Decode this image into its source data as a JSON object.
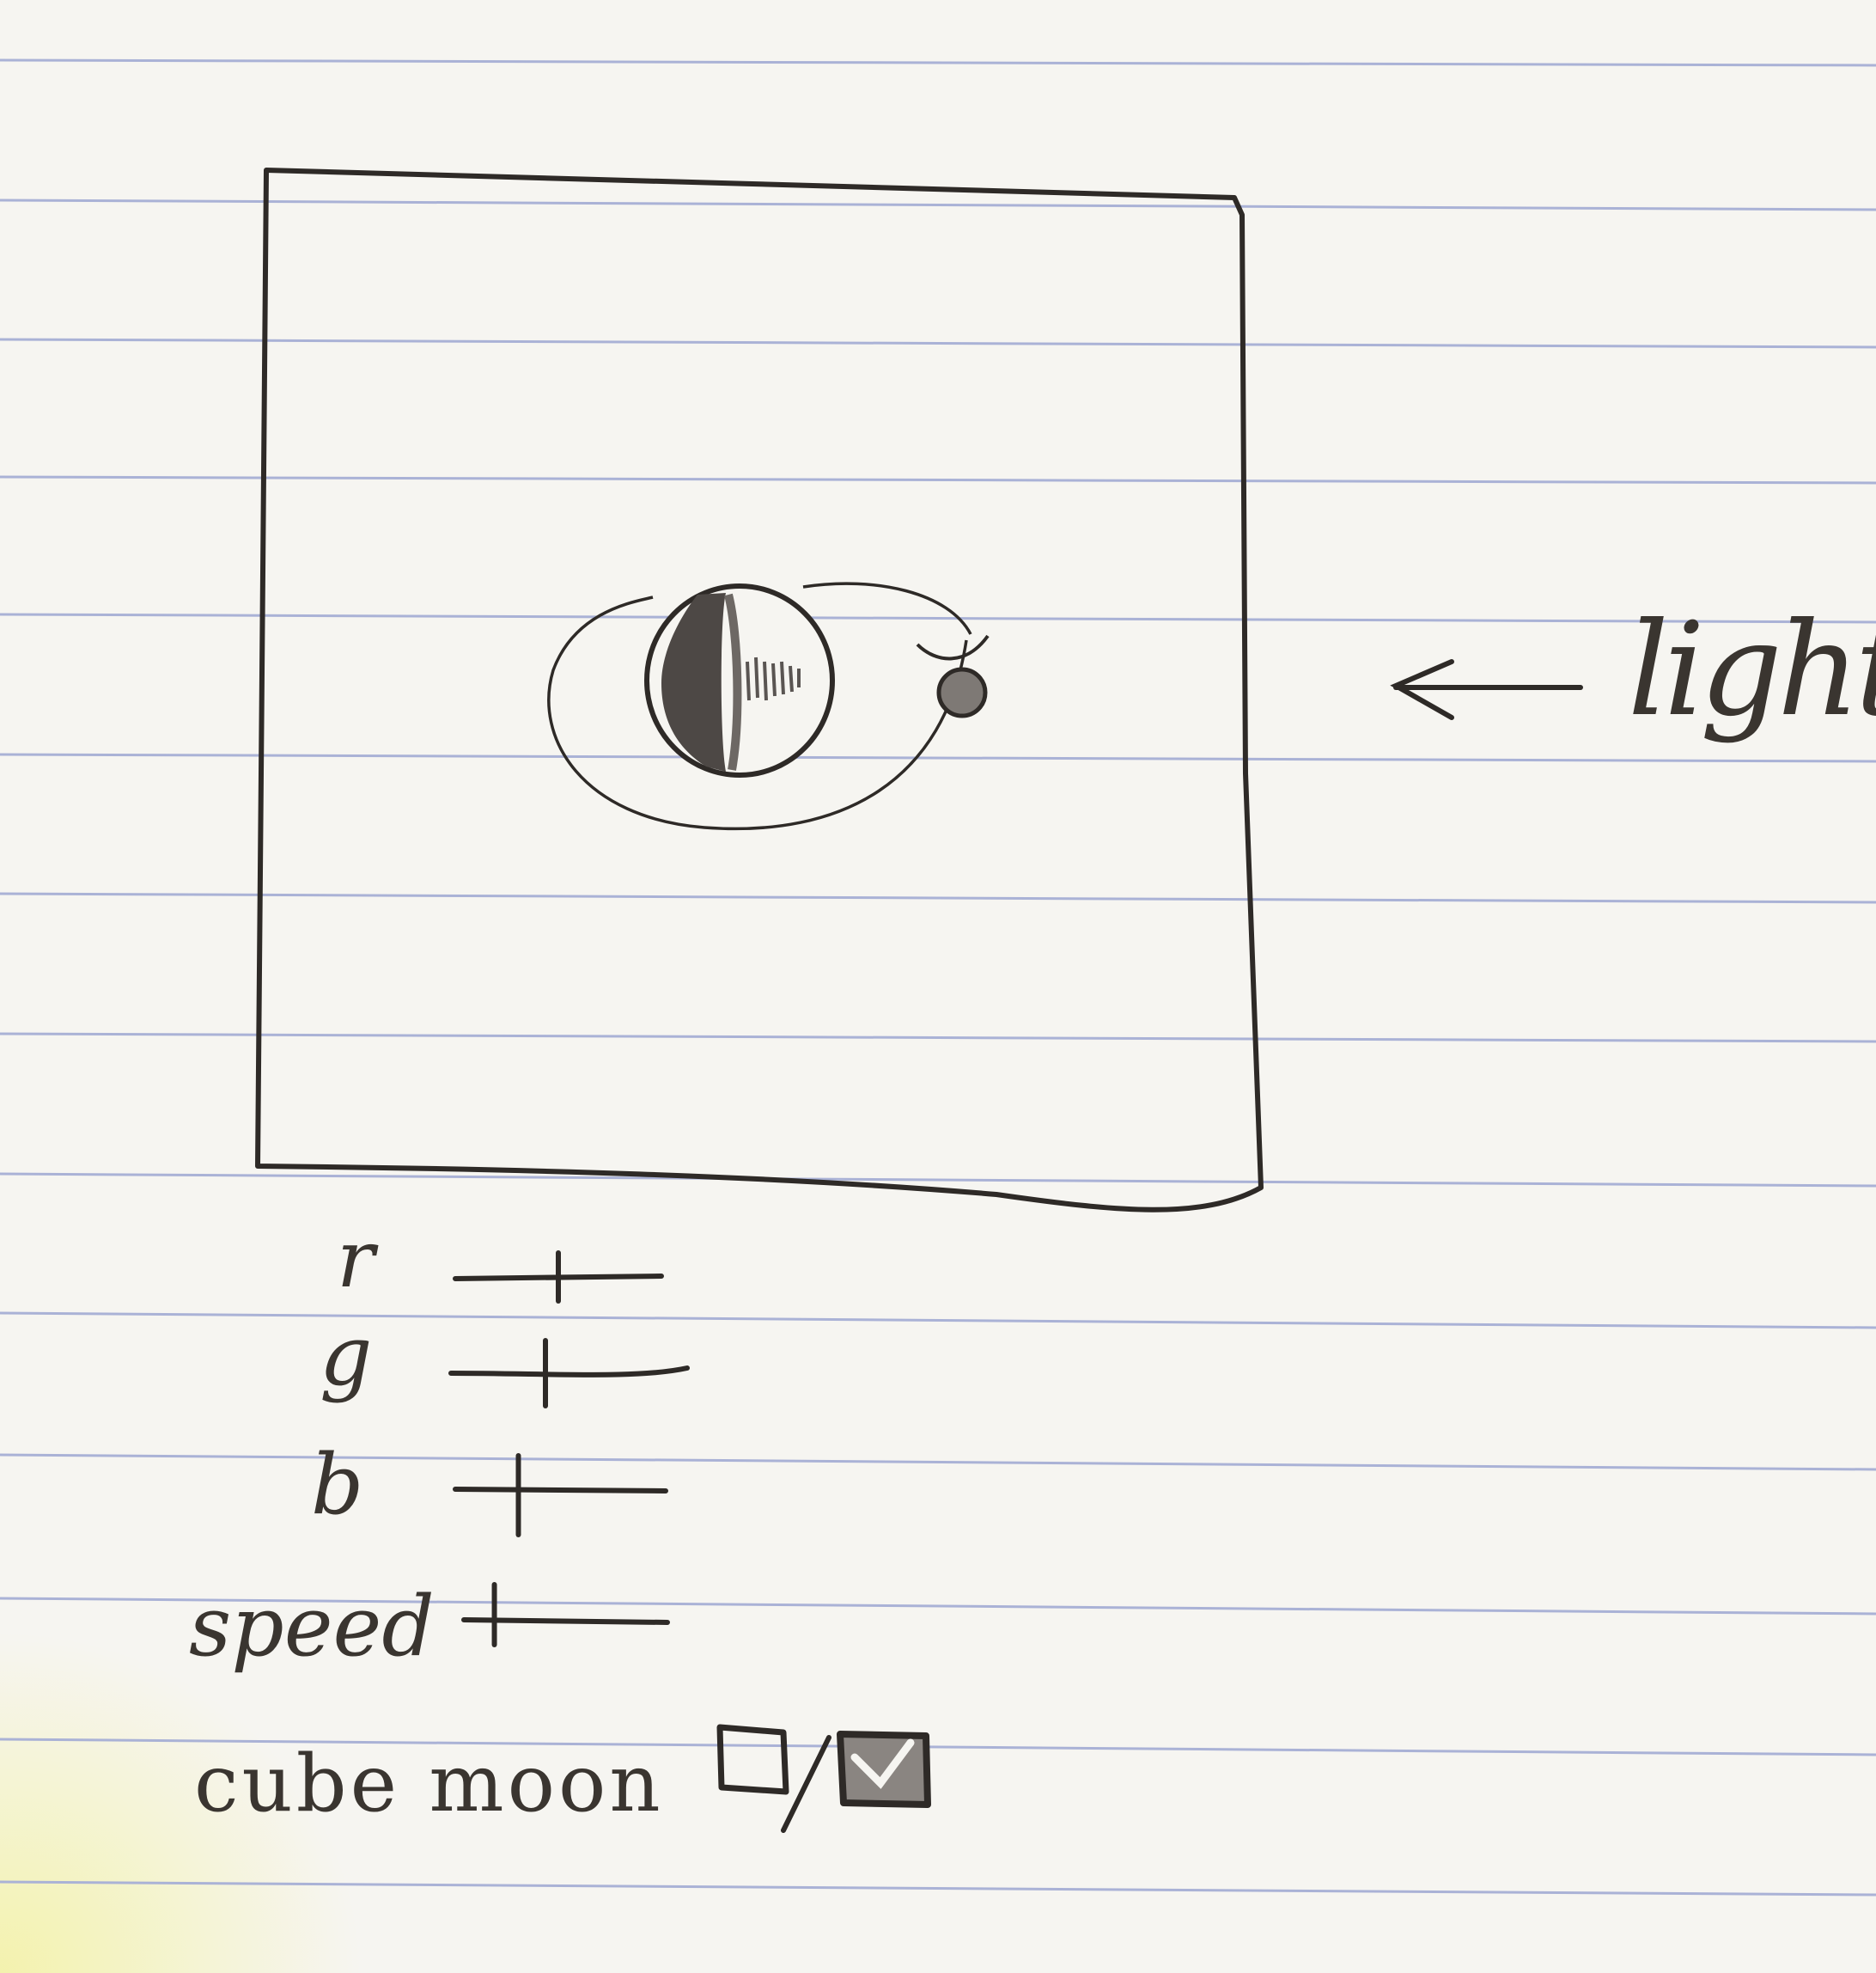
{
  "labels": {
    "light": "light",
    "cube_moon": "cube moon"
  },
  "sliders": [
    {
      "name": "r",
      "label": "r",
      "value": 0.5
    },
    {
      "name": "g",
      "label": "g",
      "value": 0.4
    },
    {
      "name": "b",
      "label": "b",
      "value": 0.3
    },
    {
      "name": "speed",
      "label": "speed",
      "value": 0.15
    }
  ],
  "cube_moon": {
    "states": [
      "unchecked",
      "checked"
    ]
  },
  "colors": {
    "ink": "#2e2a27",
    "paper": "#f6f5f1",
    "rule_line": "#aab2d6",
    "highlight": "#f3f2a6"
  }
}
